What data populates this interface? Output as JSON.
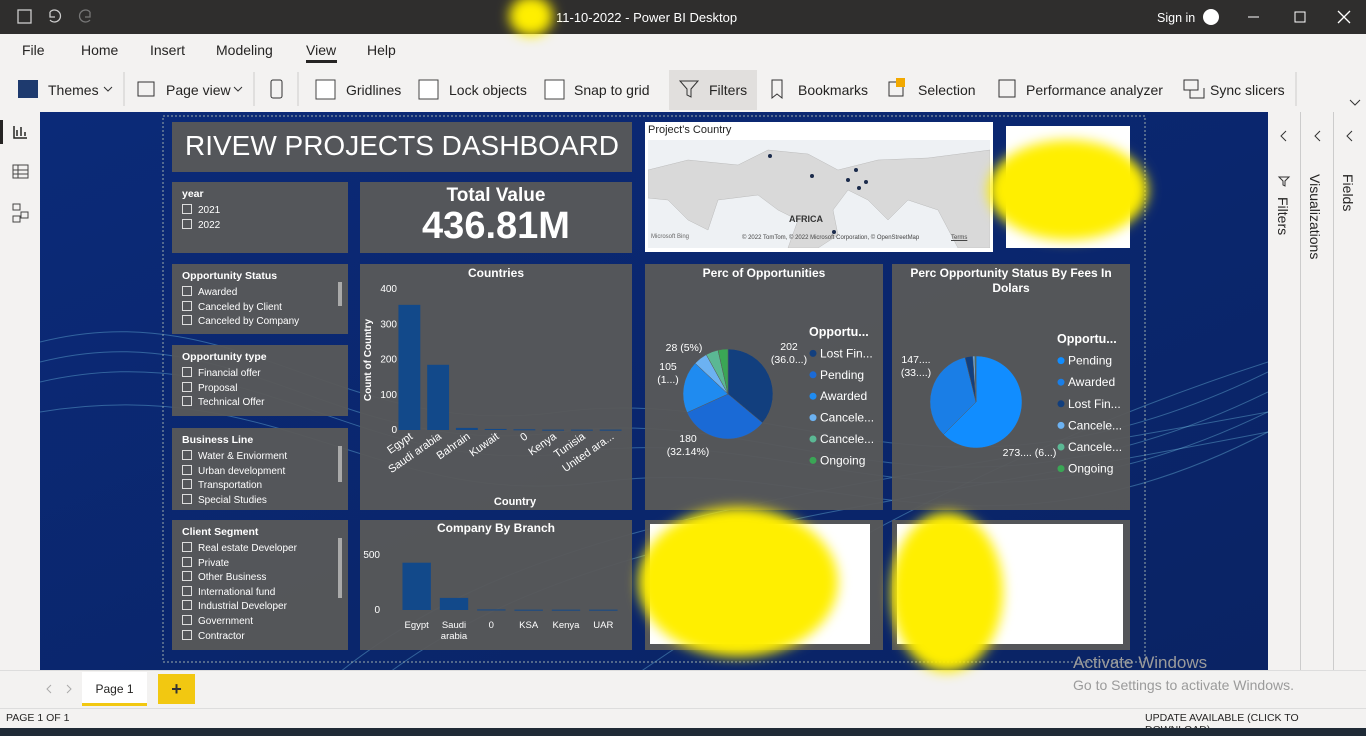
{
  "window": {
    "title": "11-10-2022 - Power BI Desktop",
    "sign_in": "Sign in"
  },
  "menu": [
    "File",
    "Home",
    "Insert",
    "Modeling",
    "View",
    "Help"
  ],
  "ribbon": [
    "Themes",
    "Page view",
    "Gridlines",
    "Lock objects",
    "Snap to grid",
    "Filters",
    "Bookmarks",
    "Selection",
    "Performance analyzer",
    "Sync slicers"
  ],
  "panes": [
    "Filters",
    "Visualizations",
    "Fields"
  ],
  "dashboard_title": "RIVEW PROJECTS DASHBOARD",
  "card": {
    "title": "Total Value",
    "value": "436.81M"
  },
  "map": {
    "title": "Project's Country",
    "region_label": "AFRICA",
    "logo": "Microsoft Bing",
    "credits": "© 2022 TomTom, © 2022 Microsoft Corporation, © OpenStreetMap",
    "terms": "Terms"
  },
  "slicers": [
    {
      "title": "year",
      "items": [
        "2021",
        "2022"
      ]
    },
    {
      "title": "Opportunity Status",
      "items": [
        "Awarded",
        "Canceled by Client",
        "Canceled by Company"
      ]
    },
    {
      "title": "Opportunity type",
      "items": [
        "Financial offer",
        "Proposal",
        "Technical Offer"
      ]
    },
    {
      "title": "Business Line",
      "items": [
        "Water & Enviorment",
        "Urban development",
        "Transportation",
        "Special Studies"
      ]
    },
    {
      "title": "Client Segment",
      "items": [
        "Real estate Developer",
        "Private",
        "Other Business",
        "International fund",
        "Industrial Developer",
        "Government",
        "Contractor"
      ]
    }
  ],
  "chart_data": [
    {
      "type": "bar",
      "title": "Countries",
      "x_label": "Country",
      "y_label": "Count of Country",
      "categories": [
        "Egypt",
        "Saudi arabia",
        "Bahrain",
        "Kuwait",
        "0",
        "Kenya",
        "Tunisia",
        "United ara..."
      ],
      "values": [
        355,
        185,
        6,
        3,
        2,
        1,
        1,
        1
      ],
      "color": "#12498a",
      "ylim": [
        0,
        400
      ],
      "yticks": [
        0,
        100,
        200,
        300,
        400
      ]
    },
    {
      "type": "bar",
      "title": "Company By Branch",
      "categories": [
        "Egypt",
        "Saudi arabia",
        "0",
        "KSA",
        "Kenya",
        "UAR"
      ],
      "values": [
        430,
        110,
        5,
        3,
        3,
        3
      ],
      "color": "#12498a",
      "ylim": [
        0,
        600
      ],
      "yticks": [
        0,
        500
      ]
    },
    {
      "type": "pie",
      "title": "Perc of Opportunities",
      "legend_title": "Opportu...",
      "categories": [
        "Lost Fin...",
        "Pending",
        "Awarded",
        "Cancele...",
        "Cancele...",
        "Ongoing"
      ],
      "values": [
        202,
        180,
        105,
        28,
        25,
        20
      ],
      "value_labels": [
        "202 (36.0...)",
        "180 (32.14%)",
        "105 (1...)",
        "28 (5%)",
        null,
        null
      ],
      "colors": [
        "#123f7e",
        "#1a6ad6",
        "#1f8bf0",
        "#6cb2f2",
        "#5bb894",
        "#3aa655"
      ]
    },
    {
      "type": "pie",
      "title": "Perc Opportunity Status By Fees In Dolars",
      "legend_title": "Opportu...",
      "categories": [
        "Pending",
        "Awarded",
        "Lost Fin...",
        "Cancele...",
        "Cancele...",
        "Ongoing"
      ],
      "values": [
        273,
        147,
        12,
        3,
        1,
        0.8
      ],
      "value_labels": [
        "273.... (6...)",
        "147.... (33....)",
        null,
        null,
        null,
        null
      ],
      "colors": [
        "#118dff",
        "#1a7ee6",
        "#123f7e",
        "#6cb2f2",
        "#5bb894",
        "#3aa655"
      ]
    }
  ],
  "page_tab": "Page 1",
  "add_page": "+",
  "status": {
    "left": "PAGE 1 OF 1",
    "right": "UPDATE AVAILABLE (CLICK TO DOWNLOAD)"
  },
  "watermark": {
    "title": "Activate Windows",
    "text": "Go to Settings to activate Windows."
  }
}
